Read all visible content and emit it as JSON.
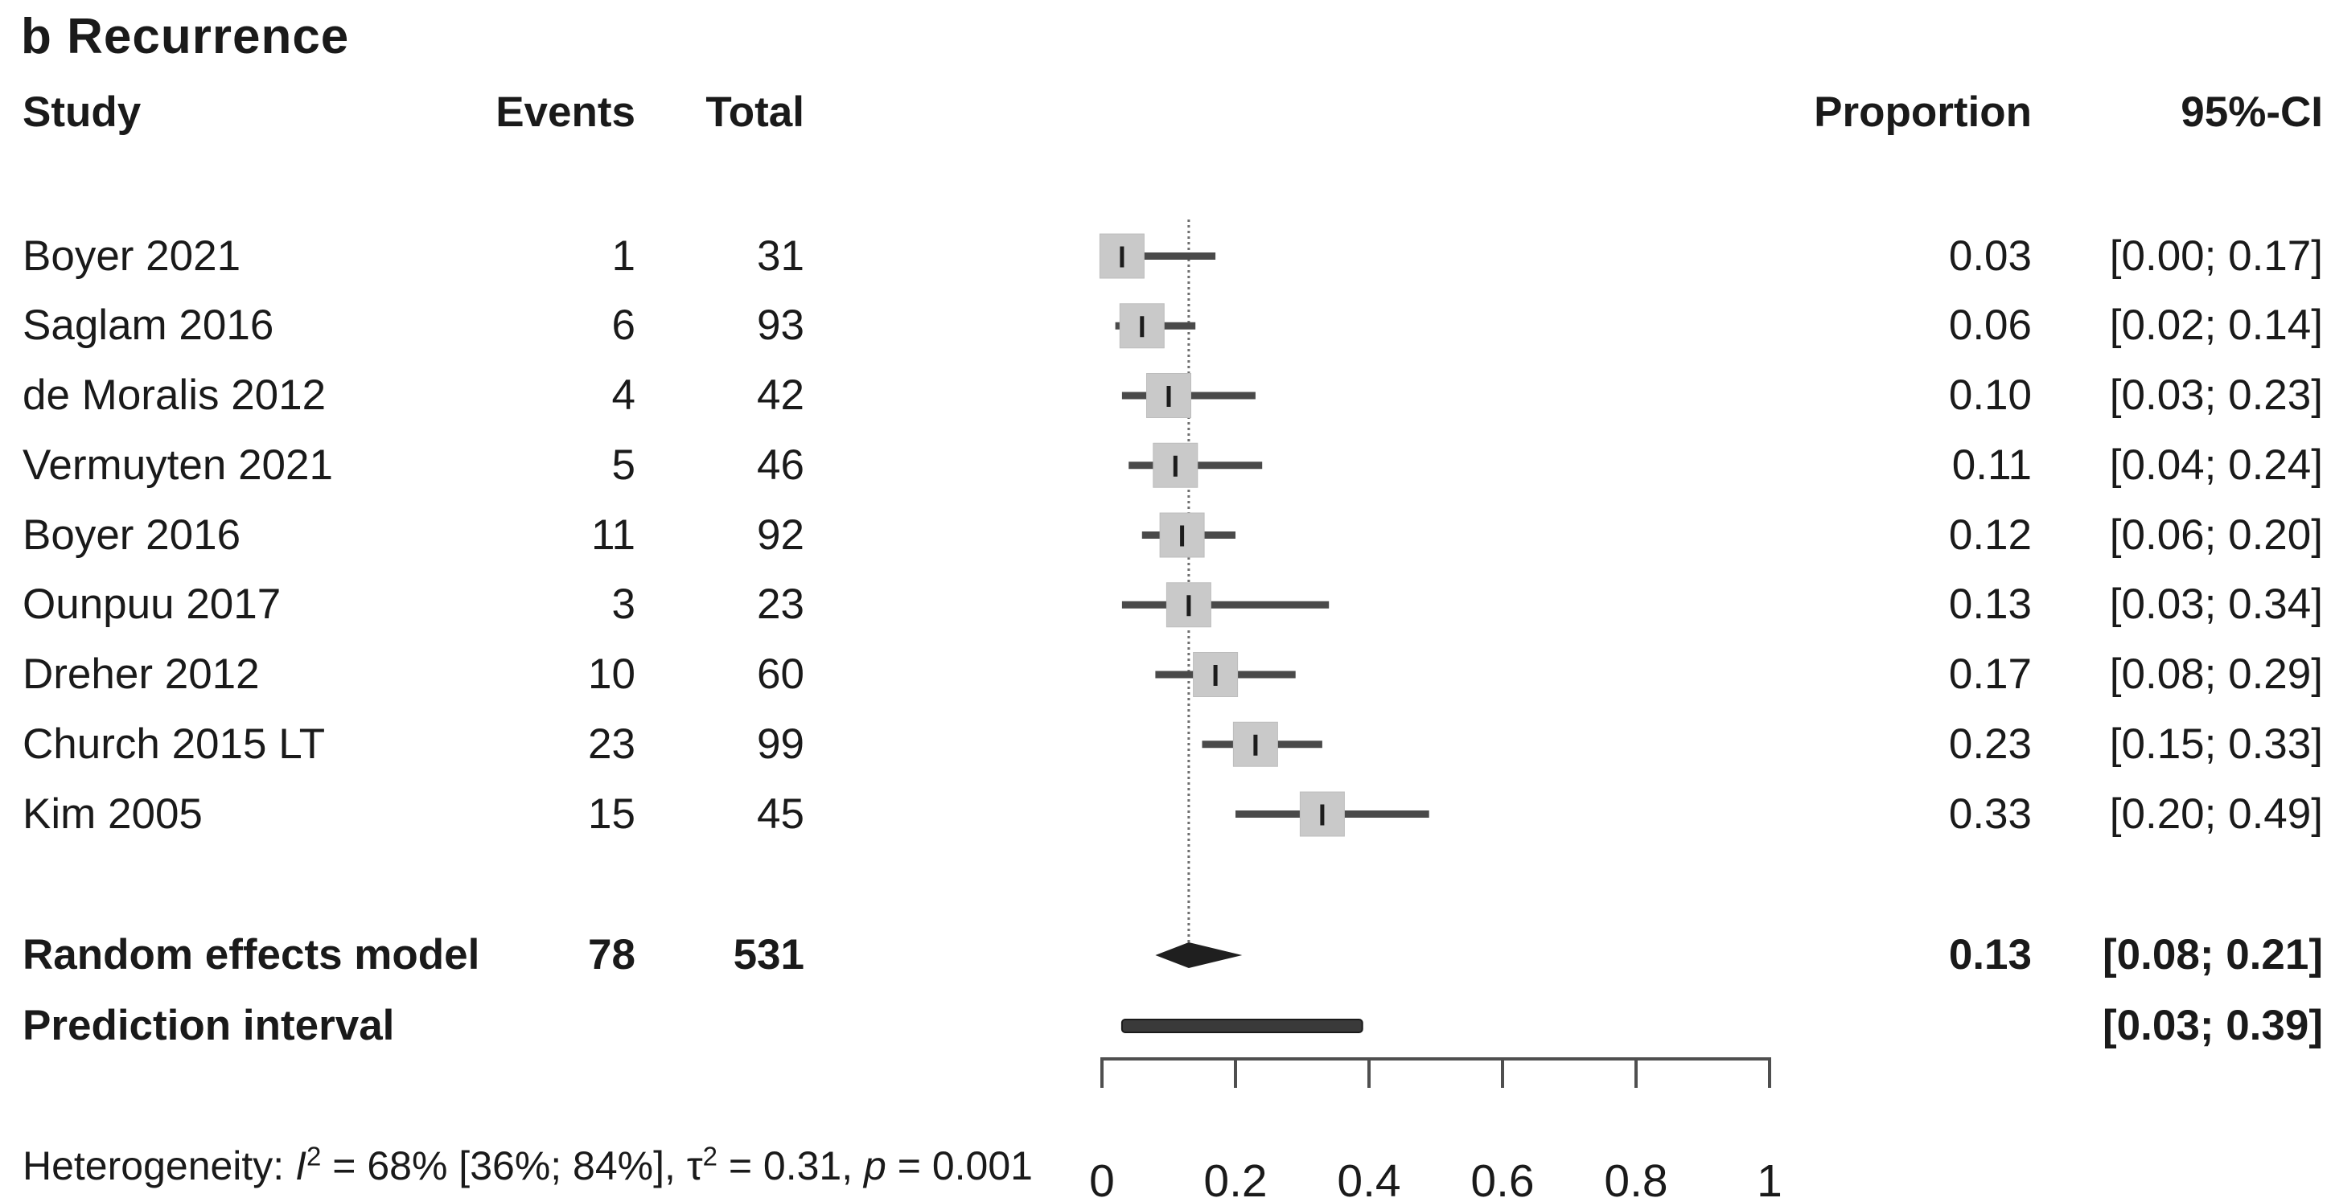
{
  "title": "b Recurrence",
  "columns": {
    "study": "Study",
    "events": "Events",
    "total": "Total",
    "proportion": "Proportion",
    "ci": "95%-CI"
  },
  "chart_data": {
    "type": "forest",
    "title": "b Recurrence",
    "x_axis": {
      "min": 0,
      "max": 1,
      "tick_labels": [
        "0",
        "0.2",
        "0.4",
        "0.6",
        "0.8",
        "1"
      ],
      "tick_values": [
        0,
        0.2,
        0.4,
        0.6,
        0.8,
        1
      ]
    },
    "pooled_reference_line": 0.13,
    "studies": [
      {
        "name": "Boyer 2021",
        "events": 1,
        "total": 31,
        "proportion": 0.03,
        "ci_lo": 0.0,
        "ci_hi": 0.17,
        "proportion_label": "0.03",
        "ci_label": "[0.00; 0.17]"
      },
      {
        "name": "Saglam 2016",
        "events": 6,
        "total": 93,
        "proportion": 0.06,
        "ci_lo": 0.02,
        "ci_hi": 0.14,
        "proportion_label": "0.06",
        "ci_label": "[0.02; 0.14]"
      },
      {
        "name": "de Moralis 2012",
        "events": 4,
        "total": 42,
        "proportion": 0.1,
        "ci_lo": 0.03,
        "ci_hi": 0.23,
        "proportion_label": "0.10",
        "ci_label": "[0.03; 0.23]"
      },
      {
        "name": "Vermuyten 2021",
        "events": 5,
        "total": 46,
        "proportion": 0.11,
        "ci_lo": 0.04,
        "ci_hi": 0.24,
        "proportion_label": "0.11",
        "ci_label": "[0.04; 0.24]"
      },
      {
        "name": "Boyer 2016",
        "events": 11,
        "total": 92,
        "proportion": 0.12,
        "ci_lo": 0.06,
        "ci_hi": 0.2,
        "proportion_label": "0.12",
        "ci_label": "[0.06; 0.20]"
      },
      {
        "name": "Ounpuu 2017",
        "events": 3,
        "total": 23,
        "proportion": 0.13,
        "ci_lo": 0.03,
        "ci_hi": 0.34,
        "proportion_label": "0.13",
        "ci_label": "[0.03; 0.34]"
      },
      {
        "name": "Dreher 2012",
        "events": 10,
        "total": 60,
        "proportion": 0.17,
        "ci_lo": 0.08,
        "ci_hi": 0.29,
        "proportion_label": "0.17",
        "ci_label": "[0.08; 0.29]"
      },
      {
        "name": "Church 2015 LT",
        "events": 23,
        "total": 99,
        "proportion": 0.23,
        "ci_lo": 0.15,
        "ci_hi": 0.33,
        "proportion_label": "0.23",
        "ci_label": "[0.15; 0.33]"
      },
      {
        "name": "Kim 2005",
        "events": 15,
        "total": 45,
        "proportion": 0.33,
        "ci_lo": 0.2,
        "ci_hi": 0.49,
        "proportion_label": "0.33",
        "ci_label": "[0.20; 0.49]"
      }
    ],
    "summary": {
      "name": "Random effects model",
      "events": 78,
      "total": 531,
      "proportion": 0.13,
      "ci_lo": 0.08,
      "ci_hi": 0.21,
      "proportion_label": "0.13",
      "ci_label": "[0.08; 0.21]"
    },
    "prediction": {
      "name": "Prediction interval",
      "ci_lo": 0.03,
      "ci_hi": 0.39,
      "ci_label": "[0.03; 0.39]"
    },
    "heterogeneity": {
      "prefix": "Heterogeneity: ",
      "i_sym": "I",
      "i_sup": "2",
      "seg1": " = 68% [36%; 84%], ",
      "tau_sym": "τ",
      "tau_sup": "2",
      "seg2": " = 0.31, ",
      "p_sym": "p",
      "seg3": " = 0.001",
      "full_text": "Heterogeneity: I2 = 68% [36%; 84%], τ2 = 0.31, p = 0.001"
    },
    "colors": {
      "square": "#c9c9c9",
      "square_edge": "#bdbdbd",
      "ci_line": "#4a4a4a",
      "marker": "#1c1c1c",
      "diamond": "#1f1f1f",
      "prediction_bar_fill": "#3a3a3a",
      "prediction_bar_edge": "#1a1a1a",
      "axis": "#4f4f4f",
      "dotted_line": "#6f6f6f",
      "text": "#1a1a1a"
    }
  }
}
